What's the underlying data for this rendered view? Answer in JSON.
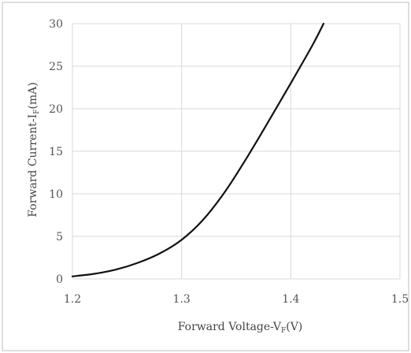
{
  "chart_data": {
    "type": "line",
    "title": "",
    "xlabel": {
      "main": "Forward Voltage-V",
      "sub": "F",
      "tail": "(V)"
    },
    "ylabel": {
      "main": "Forward Current-I",
      "sub": "F",
      "tail": "(mA)"
    },
    "xlim": [
      1.2,
      1.5
    ],
    "ylim": [
      0,
      30
    ],
    "xticks": [
      1.2,
      1.3,
      1.4,
      1.5
    ],
    "xtick_labels": [
      "1.2",
      "1.3",
      "1.4",
      "1.5"
    ],
    "yticks": [
      0,
      5,
      10,
      15,
      20,
      25,
      30
    ],
    "ytick_labels": [
      "0",
      "5",
      "10",
      "15",
      "20",
      "25",
      "30"
    ],
    "grid": true,
    "legend": "none",
    "line_color": "#111111",
    "grid_color": "#d9d9d9",
    "border_color": "#bfbfbf",
    "series": [
      {
        "x": [
          1.2,
          1.22,
          1.24,
          1.26,
          1.28,
          1.3,
          1.32,
          1.34,
          1.36,
          1.38,
          1.4,
          1.42,
          1.43
        ],
        "y": [
          0.3,
          0.6,
          1.1,
          1.9,
          3.0,
          4.6,
          7.0,
          10.3,
          14.3,
          18.6,
          23.0,
          27.5,
          30.0
        ]
      }
    ]
  }
}
